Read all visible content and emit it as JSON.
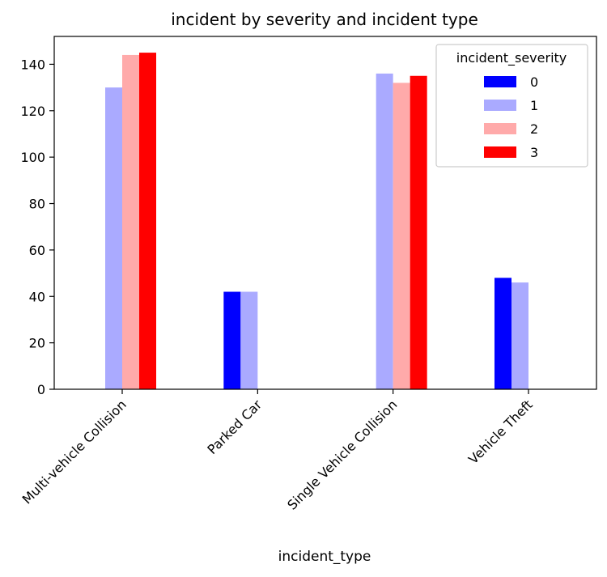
{
  "chart_data": {
    "type": "bar",
    "title": "incident by severity and incident type",
    "xlabel": "incident_type",
    "ylabel": "",
    "categories": [
      "Multi-vehicle Collision",
      "Parked Car",
      "Single Vehicle Collision",
      "Vehicle Theft"
    ],
    "ylim": [
      0,
      152
    ],
    "yticks": [
      0,
      20,
      40,
      60,
      80,
      100,
      120,
      140
    ],
    "grid": false,
    "legend": {
      "title": "incident_severity",
      "placement": "top-right"
    },
    "series": [
      {
        "name": "0",
        "color": "#0000ff",
        "values": [
          0,
          42,
          0,
          48
        ]
      },
      {
        "name": "1",
        "color": "#aaaaff",
        "values": [
          130,
          42,
          136,
          46
        ]
      },
      {
        "name": "2",
        "color": "#ffaaaa",
        "values": [
          144,
          0,
          132,
          0
        ]
      },
      {
        "name": "3",
        "color": "#ff0000",
        "values": [
          145,
          0,
          135,
          0
        ]
      }
    ]
  }
}
